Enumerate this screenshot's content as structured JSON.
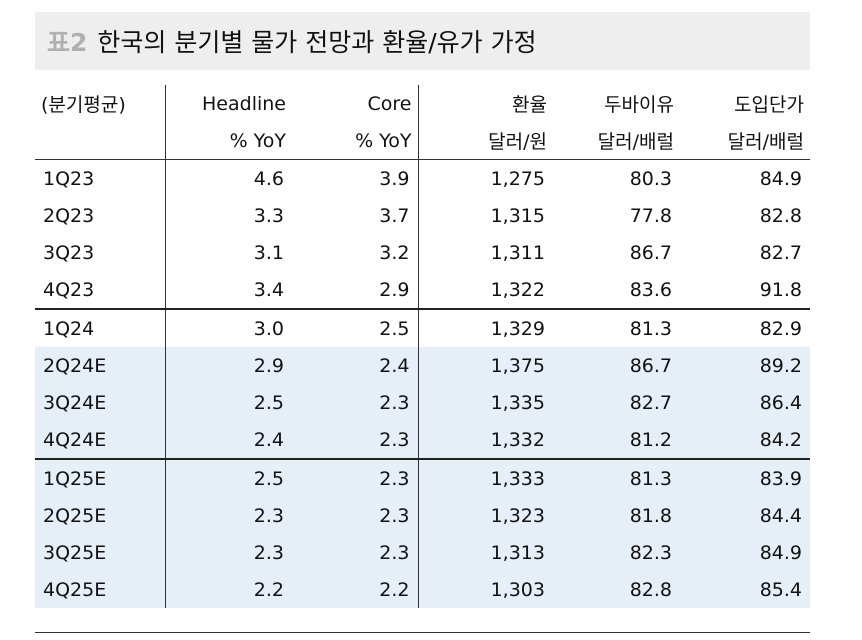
{
  "title": {
    "tag": "표2",
    "text": "한국의 분기별 물가 전망과 환율/유가 가정"
  },
  "table": {
    "header": [
      [
        "(분기평균)",
        "Headline",
        "Core",
        "환율",
        "두바이유",
        "도입단가"
      ],
      [
        "",
        "% YoY",
        "% YoY",
        "달러/원",
        "달러/배럴",
        "달러/배럴"
      ]
    ],
    "rows": [
      [
        "1Q23",
        "4.6",
        "3.9",
        "1,275",
        "80.3",
        "84.9"
      ],
      [
        "2Q23",
        "3.3",
        "3.7",
        "1,315",
        "77.8",
        "82.8"
      ],
      [
        "3Q23",
        "3.1",
        "3.2",
        "1,311",
        "86.7",
        "82.7"
      ],
      [
        "4Q23",
        "3.4",
        "2.9",
        "1,322",
        "83.6",
        "91.8"
      ],
      [
        "1Q24",
        "3.0",
        "2.5",
        "1,329",
        "81.3",
        "82.9"
      ],
      [
        "2Q24E",
        "2.9",
        "2.4",
        "1,375",
        "86.7",
        "89.2"
      ],
      [
        "3Q24E",
        "2.5",
        "2.3",
        "1,335",
        "82.7",
        "86.4"
      ],
      [
        "4Q24E",
        "2.4",
        "2.3",
        "1,332",
        "81.2",
        "84.2"
      ],
      [
        "1Q25E",
        "2.5",
        "2.3",
        "1,333",
        "81.3",
        "83.9"
      ],
      [
        "2Q25E",
        "2.3",
        "2.3",
        "1,323",
        "81.8",
        "84.4"
      ],
      [
        "3Q25E",
        "2.3",
        "2.3",
        "1,313",
        "82.3",
        "84.9"
      ],
      [
        "4Q25E",
        "2.2",
        "2.2",
        "1,303",
        "82.8",
        "85.4"
      ]
    ]
  }
}
